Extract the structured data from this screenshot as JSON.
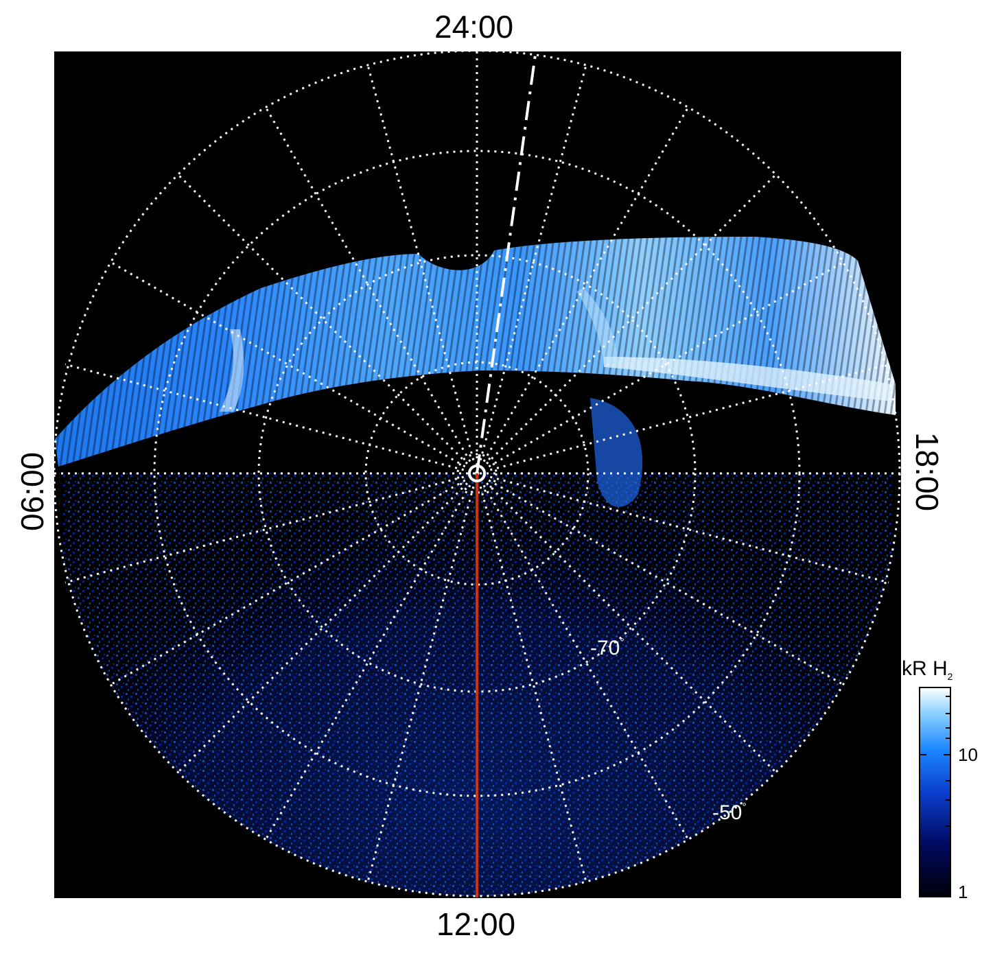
{
  "figure": {
    "local_time_labels": {
      "top": "24:00",
      "bottom": "12:00",
      "left": "06:00",
      "right": "18:00"
    },
    "latitude_labels": {
      "inner": "-70",
      "outer": "-50",
      "degree_symbol": "°"
    }
  },
  "colorbar": {
    "title_main": "kR H",
    "title_sub": "2",
    "ticks": [
      "10",
      "1"
    ],
    "scale": "log"
  },
  "colors": {
    "background": "#000000",
    "grid": "#ffffff",
    "colormap_low": "#000010",
    "colormap_mid": "#0a3fd0",
    "colormap_high": "#ffffff",
    "meridian_line": "#d03010"
  }
}
